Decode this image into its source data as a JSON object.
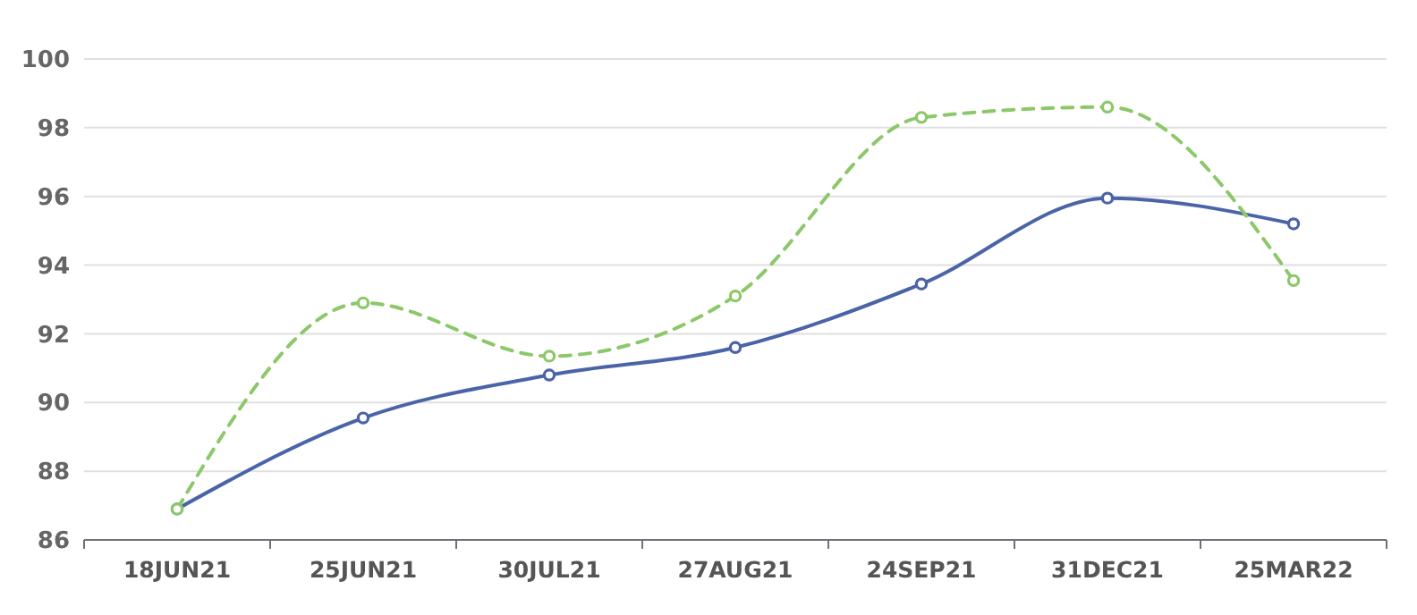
{
  "chart_data": {
    "type": "line",
    "categories": [
      "18JUN21",
      "25JUN21",
      "30JUL21",
      "27AUG21",
      "24SEP21",
      "31DEC21",
      "25MAR22"
    ],
    "series": [
      {
        "color": "#4a64a8",
        "line_style": "solid",
        "values": [
          86.9,
          89.55,
          90.8,
          91.6,
          93.45,
          95.95,
          95.2
        ]
      },
      {
        "color": "#8cc86a",
        "line_style": "dashed",
        "values": [
          86.9,
          92.9,
          91.35,
          93.1,
          98.3,
          98.6,
          93.55
        ]
      }
    ],
    "ylim": [
      86,
      100
    ],
    "yticks": [
      86,
      88,
      90,
      92,
      94,
      96,
      98,
      100
    ],
    "grid": "y",
    "marker": "circle"
  }
}
